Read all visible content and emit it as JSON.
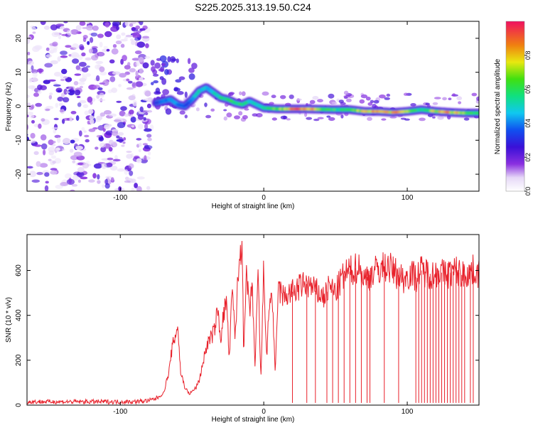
{
  "title": "S225.2025.313.19.50.C24",
  "colors": {
    "snr_line": "#e8202a",
    "axis": "#000000",
    "spectro_background": "#ffffff"
  },
  "chart_data": [
    {
      "type": "heatmap",
      "title": "S225.2025.313.19.50.C24",
      "xlabel": "Height of straight line (km)",
      "ylabel": "Frequency (Hz)",
      "xlim": [
        -165,
        150
      ],
      "ylim": [
        -25,
        25
      ],
      "x_ticks": [
        -100,
        0,
        100
      ],
      "x_tick_labels": [
        "-100",
        "0",
        "100"
      ],
      "y_ticks": [
        -20,
        -10,
        0,
        10,
        20
      ],
      "y_tick_labels": [
        "-20",
        "-10",
        "0",
        "10",
        "20"
      ],
      "colorbar": {
        "label": "Normalized spectral amplitude",
        "range": [
          0,
          1
        ],
        "ticks": [
          0.0,
          0.2,
          0.4,
          0.6,
          0.8
        ],
        "tick_labels": [
          "0.0",
          "0.2",
          "0.4",
          "0.6",
          "0.8"
        ],
        "colormap": "rainbow"
      },
      "noise_region_x": [
        -165,
        -80
      ],
      "ridge": {
        "x": [
          -75,
          -70,
          -65,
          -60,
          -55,
          -50,
          -45,
          -40,
          -35,
          -30,
          -25,
          -20,
          -15,
          -10,
          -5,
          0,
          10,
          20,
          30,
          40,
          50,
          60,
          70,
          80,
          90,
          100,
          110,
          120,
          130,
          140,
          150
        ],
        "y": [
          1.0,
          1.5,
          2.0,
          0.5,
          0.0,
          2.0,
          4.5,
          5.5,
          4.0,
          2.5,
          2.0,
          1.0,
          0.5,
          1.5,
          0.5,
          -0.5,
          -0.8,
          -0.8,
          -0.8,
          -0.9,
          -1.0,
          -1.0,
          -1.5,
          -1.5,
          -1.8,
          -1.5,
          -1.0,
          -1.5,
          -1.8,
          -2.0,
          -2.0
        ],
        "amplitude": [
          0.3,
          0.4,
          0.5,
          0.4,
          0.35,
          0.45,
          0.55,
          0.55,
          0.5,
          0.6,
          0.65,
          0.7,
          0.6,
          0.55,
          0.5,
          0.6,
          0.75,
          0.95,
          0.95,
          0.7,
          0.65,
          0.6,
          0.9,
          0.85,
          0.9,
          0.75,
          0.6,
          0.8,
          0.9,
          0.75,
          0.6
        ]
      }
    },
    {
      "type": "line",
      "xlabel": "Height of straight line (km)",
      "ylabel": "SNR (10 * v/v)",
      "xlim": [
        -165,
        150
      ],
      "ylim": [
        0,
        760
      ],
      "x_ticks": [
        -100,
        0,
        100
      ],
      "x_tick_labels": [
        "-100",
        "0",
        "100"
      ],
      "y_ticks": [
        0,
        200,
        400,
        600
      ],
      "y_tick_labels": [
        "0",
        "200",
        "400",
        "600"
      ],
      "series": [
        {
          "x": [
            -165,
            -150,
            -130,
            -110,
            -90,
            -80,
            -75,
            -70,
            -66,
            -64,
            -62,
            -60,
            -58,
            -55,
            -52,
            -50,
            -47,
            -45,
            -42,
            -40,
            -37,
            -35,
            -32,
            -30,
            -28,
            -26,
            -24,
            -22,
            -20,
            -18,
            -16,
            -15,
            -14,
            -12,
            -10,
            -8,
            -6,
            -4,
            -2,
            0,
            2,
            4,
            6,
            8,
            10,
            14,
            18,
            22,
            26,
            30,
            34,
            38,
            42,
            46,
            50,
            54,
            58,
            62,
            66,
            70,
            74,
            78,
            82,
            86,
            90,
            94,
            98,
            102,
            106,
            110,
            114,
            118,
            122,
            126,
            130,
            134,
            138,
            142,
            146,
            150
          ],
          "y": [
            15,
            15,
            15,
            15,
            15,
            20,
            30,
            50,
            150,
            250,
            300,
            360,
            150,
            80,
            50,
            60,
            80,
            110,
            200,
            260,
            300,
            320,
            420,
            300,
            400,
            470,
            200,
            520,
            300,
            560,
            700,
            760,
            200,
            600,
            400,
            540,
            150,
            600,
            100,
            620,
            200,
            470,
            480,
            120,
            520,
            480,
            500,
            510,
            530,
            540,
            520,
            500,
            480,
            530,
            500,
            560,
            590,
            600,
            620,
            560,
            580,
            600,
            610,
            620,
            600,
            580,
            560,
            590,
            570,
            600,
            590,
            580,
            600,
            580,
            590,
            600,
            580,
            590,
            600,
            590
          ],
          "dropouts_x": [
            20,
            30,
            36,
            44,
            48,
            52,
            56,
            60,
            64,
            68,
            72,
            74,
            84,
            94,
            106,
            108,
            110,
            112,
            114,
            116,
            118,
            120,
            122,
            124,
            126,
            128,
            130,
            132,
            134,
            136,
            138,
            140,
            144,
            146
          ],
          "dropouts_y": 10
        }
      ]
    }
  ]
}
